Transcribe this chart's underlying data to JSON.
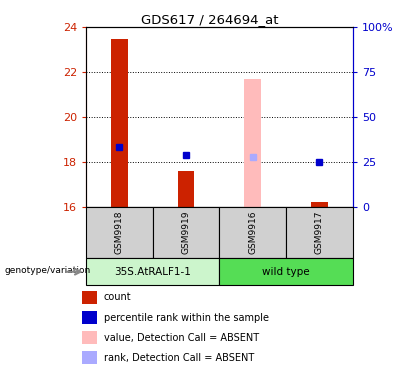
{
  "title": "GDS617 / 264694_at",
  "samples": [
    "GSM9918",
    "GSM9919",
    "GSM9916",
    "GSM9917"
  ],
  "groups": [
    "35S.AtRALF1-1",
    "35S.AtRALF1-1",
    "wild type",
    "wild type"
  ],
  "ylim_left": [
    16,
    24
  ],
  "ylim_right": [
    0,
    100
  ],
  "yticks_left": [
    16,
    18,
    20,
    22,
    24
  ],
  "yticks_right": [
    0,
    25,
    50,
    75,
    100
  ],
  "ytick_labels_right": [
    "0",
    "25",
    "50",
    "75",
    "100%"
  ],
  "bar_values": [
    23.5,
    17.6,
    null,
    16.2
  ],
  "bar_colors_present": [
    "#cc2200",
    "#cc2200",
    null,
    "#cc2200"
  ],
  "bar_values_absent": [
    null,
    null,
    21.7,
    null
  ],
  "bar_colors_absent": [
    null,
    null,
    "#ffbbbb",
    null
  ],
  "rank_values": [
    18.65,
    18.3,
    null,
    18.0
  ],
  "rank_colors_present": [
    "#0000cc",
    "#0000cc",
    null,
    "#0000cc"
  ],
  "rank_values_absent": [
    null,
    null,
    18.2,
    null
  ],
  "rank_colors_absent": [
    null,
    null,
    "#aaaaff",
    null
  ],
  "bar_width": 0.25,
  "left_axis_color": "#cc2200",
  "right_axis_color": "#0000cc",
  "group_unique": [
    "35S.AtRALF1-1",
    "wild type"
  ],
  "group_bg_colors": [
    "#ccf5cc",
    "#55dd55"
  ],
  "genotype_label": "genotype/variation",
  "legend_items": [
    {
      "label": "count",
      "color": "#cc2200"
    },
    {
      "label": "percentile rank within the sample",
      "color": "#0000cc"
    },
    {
      "label": "value, Detection Call = ABSENT",
      "color": "#ffbbbb"
    },
    {
      "label": "rank, Detection Call = ABSENT",
      "color": "#aaaaff"
    }
  ]
}
